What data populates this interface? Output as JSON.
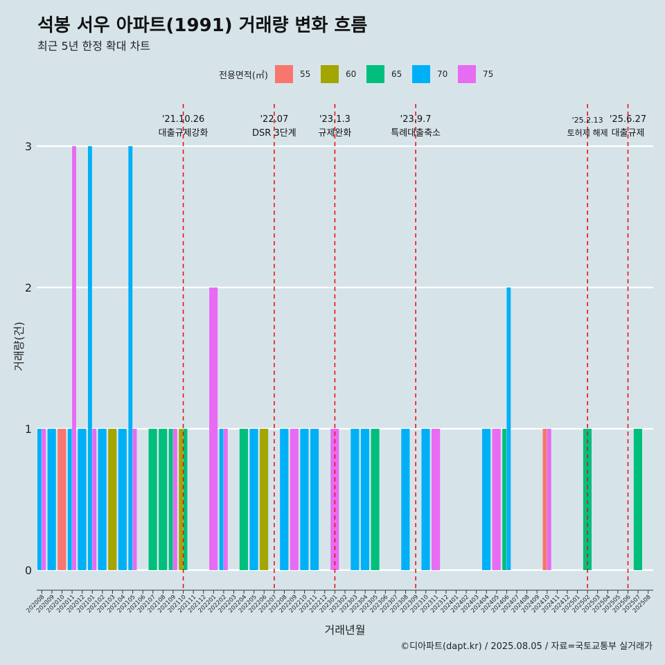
{
  "title": "석봉 서우 아파트(1991) 거래량 변화 흐름",
  "subtitle": "최근 5년 한정 확대 차트",
  "footer": "©디아파트(dapt.kr) / 2025.08.05 / 자료=국토교통부 실거래가",
  "colors": {
    "55": "#f8766d",
    "60": "#a3a500",
    "65": "#00bf7d",
    "70": "#00b0f6",
    "75": "#e76bf3"
  },
  "chart_data": {
    "type": "bar",
    "xlabel": "거래년월",
    "ylabel": "거래량(건)",
    "ylim": [
      0,
      3
    ],
    "yticks": [
      0,
      1,
      2,
      3
    ],
    "grid": true,
    "legend": {
      "title": "전용면적(㎡)",
      "position": "top",
      "entries": [
        "55",
        "60",
        "65",
        "70",
        "75"
      ]
    },
    "categories": [
      "202008",
      "202009",
      "202010",
      "202011",
      "202012",
      "202101",
      "202102",
      "202103",
      "202104",
      "202105",
      "202106",
      "202107",
      "202108",
      "202109",
      "202110",
      "202111",
      "202112",
      "202201",
      "202202",
      "202203",
      "202204",
      "202205",
      "202206",
      "202207",
      "202208",
      "202209",
      "202210",
      "202211",
      "202212",
      "202301",
      "202302",
      "202303",
      "202304",
      "202305",
      "202306",
      "202307",
      "202308",
      "202309",
      "202310",
      "202311",
      "202312",
      "202401",
      "202402",
      "202403",
      "202404",
      "202405",
      "202406",
      "202407",
      "202408",
      "202409",
      "202410",
      "202411",
      "202412",
      "202501",
      "202502",
      "202503",
      "202504",
      "202505",
      "202506",
      "202507",
      "202508"
    ],
    "series": [
      {
        "name": "55",
        "values": [
          0,
          0,
          1,
          0,
          0,
          0,
          0,
          0,
          0,
          0,
          0,
          0,
          0,
          0,
          0,
          0,
          0,
          0,
          0,
          0,
          0,
          0,
          0,
          0,
          0,
          0,
          0,
          0,
          0,
          0,
          0,
          0,
          0,
          0,
          0,
          0,
          0,
          0,
          0,
          0,
          0,
          0,
          0,
          0,
          0,
          0,
          0,
          0,
          0,
          0,
          1,
          0,
          0,
          0,
          0,
          0,
          0,
          0,
          0,
          0,
          0
        ]
      },
      {
        "name": "60",
        "values": [
          0,
          0,
          0,
          0,
          0,
          0,
          0,
          1,
          0,
          0,
          0,
          0,
          0,
          0,
          1,
          0,
          0,
          0,
          0,
          0,
          0,
          0,
          1,
          0,
          0,
          0,
          0,
          0,
          0,
          0,
          0,
          0,
          0,
          0,
          0,
          0,
          0,
          0,
          0,
          0,
          0,
          0,
          0,
          0,
          0,
          0,
          0,
          0,
          0,
          0,
          0,
          0,
          0,
          0,
          0,
          0,
          0,
          0,
          0,
          0,
          0
        ]
      },
      {
        "name": "65",
        "values": [
          0,
          0,
          0,
          0,
          0,
          0,
          0,
          0,
          0,
          0,
          0,
          1,
          1,
          1,
          1,
          0,
          0,
          0,
          0,
          0,
          1,
          0,
          0,
          0,
          0,
          0,
          0,
          0,
          0,
          0,
          0,
          0,
          0,
          1,
          0,
          0,
          0,
          0,
          0,
          0,
          0,
          0,
          0,
          0,
          0,
          0,
          1,
          0,
          0,
          0,
          0,
          0,
          0,
          0,
          1,
          0,
          0,
          0,
          0,
          1,
          0
        ]
      },
      {
        "name": "70",
        "values": [
          1,
          1,
          0,
          1,
          1,
          3,
          1,
          0,
          1,
          3,
          0,
          0,
          0,
          0,
          0,
          0,
          0,
          0,
          1,
          0,
          0,
          1,
          0,
          0,
          1,
          0,
          1,
          1,
          0,
          0,
          0,
          1,
          1,
          0,
          0,
          0,
          1,
          0,
          1,
          0,
          0,
          0,
          0,
          0,
          1,
          0,
          2,
          0,
          0,
          0,
          0,
          0,
          0,
          0,
          0,
          0,
          0,
          0,
          0,
          0,
          0
        ]
      },
      {
        "name": "75",
        "values": [
          1,
          0,
          0,
          3,
          0,
          1,
          0,
          0,
          0,
          1,
          0,
          0,
          0,
          1,
          0,
          0,
          0,
          2,
          1,
          0,
          0,
          0,
          0,
          0,
          0,
          1,
          0,
          0,
          0,
          1,
          0,
          0,
          0,
          0,
          0,
          0,
          0,
          0,
          0,
          1,
          0,
          0,
          0,
          0,
          0,
          1,
          0,
          0,
          0,
          0,
          1,
          0,
          0,
          0,
          0,
          0,
          0,
          0,
          0,
          0,
          0
        ]
      }
    ],
    "annotations": [
      {
        "x": "202110",
        "date": "'21.10.26",
        "label": "대출규제강화"
      },
      {
        "x": "202207",
        "date": "'22.07",
        "label": "DSR 3단계"
      },
      {
        "x": "202301",
        "date": "'23.1.3",
        "label": "규제완화"
      },
      {
        "x": "202309",
        "date": "'23.9.7",
        "label": "특례대출축소"
      },
      {
        "x": "202502",
        "date": "'25.2.13",
        "label": "토허제 해제"
      },
      {
        "x": "202506",
        "date": "'25.6.27",
        "label": "대출규제"
      }
    ]
  }
}
